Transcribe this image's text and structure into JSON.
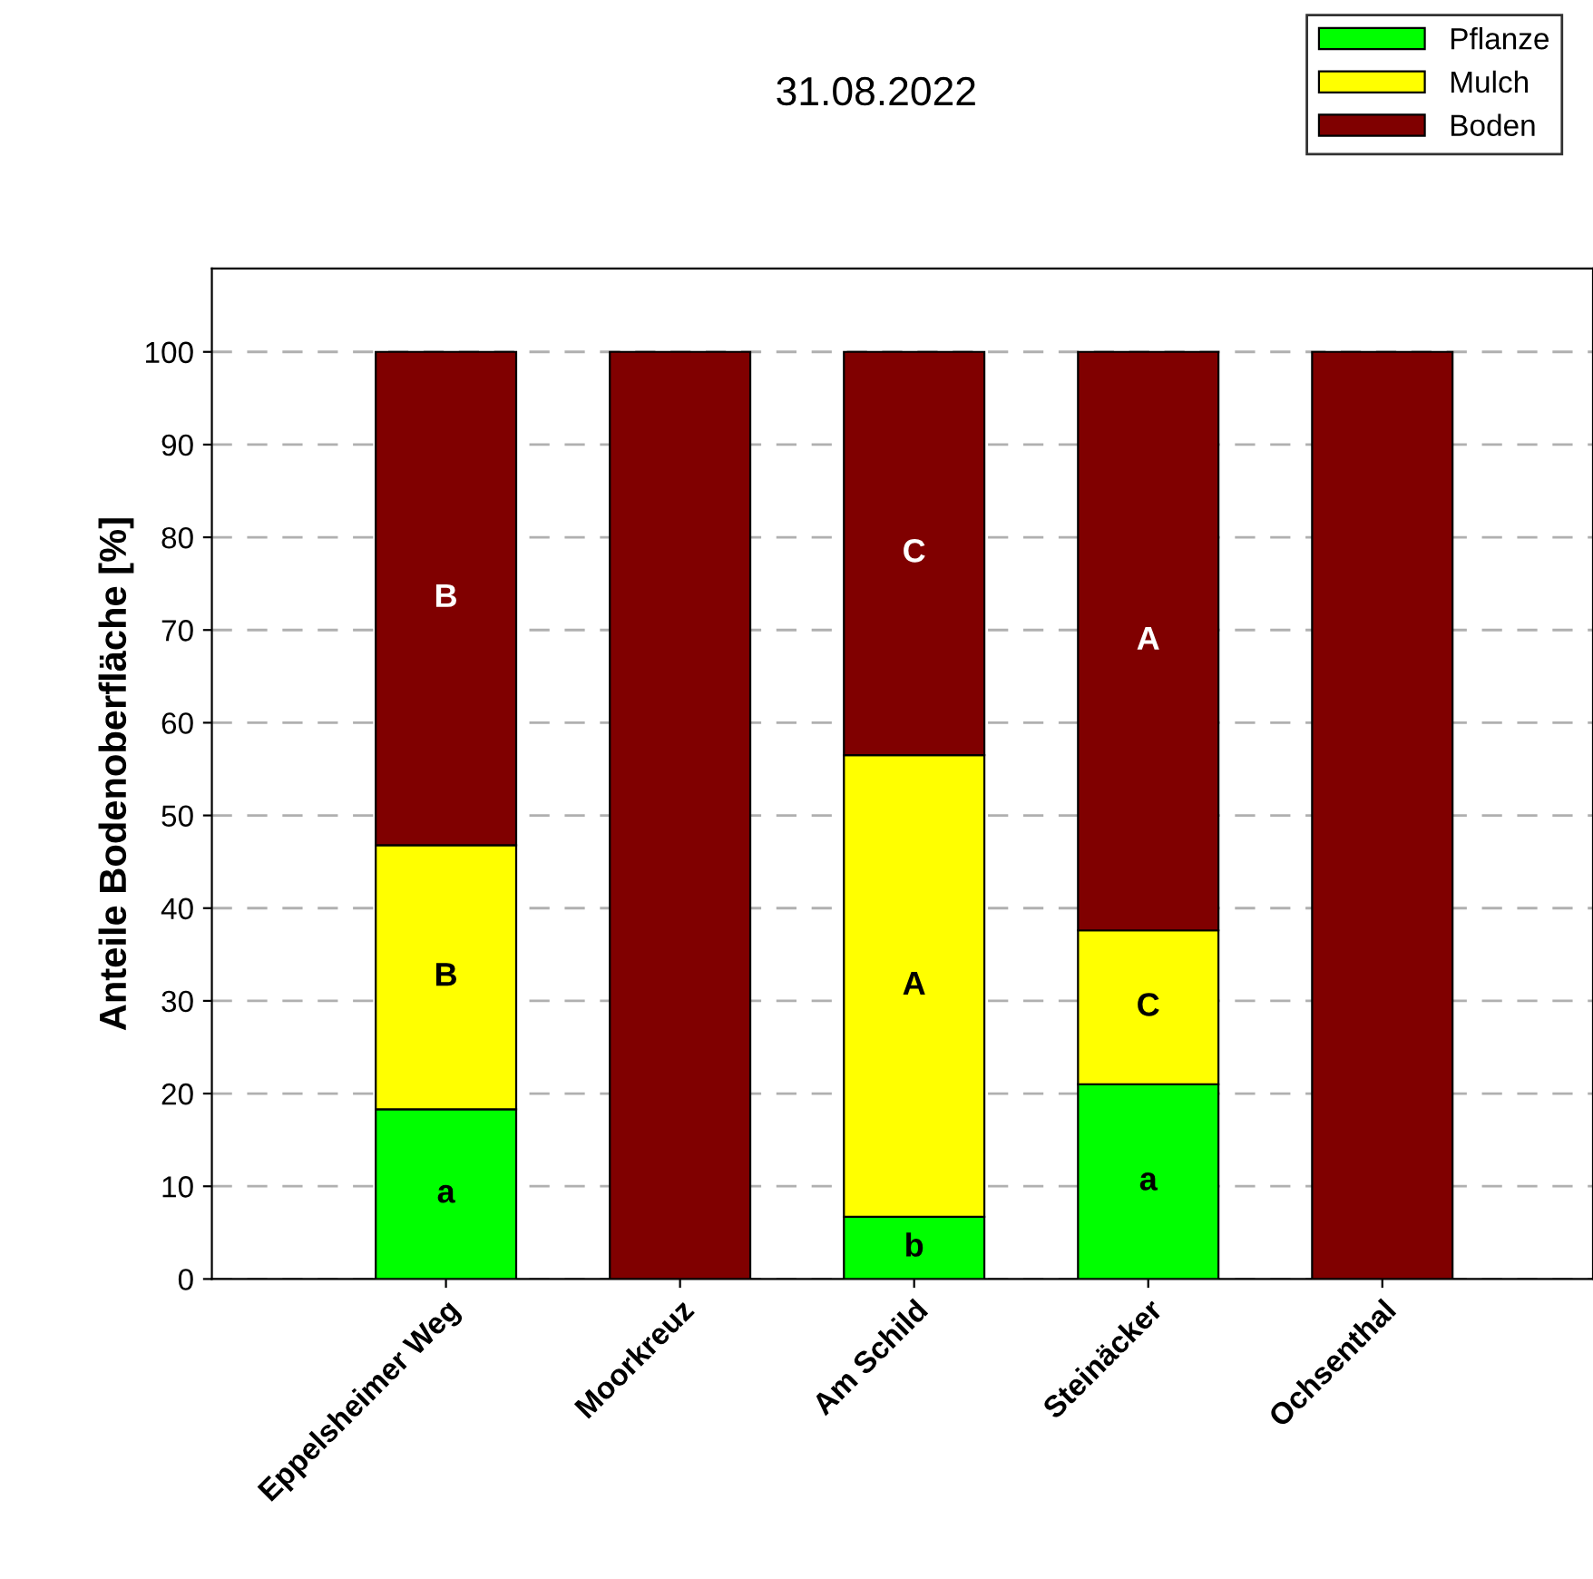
{
  "chart_data": {
    "type": "bar",
    "stacked": true,
    "title": "31.08.2022",
    "ylabel": "Anteile Bodenoberfläche [%]",
    "categories": [
      "Eppelsheimer Weg",
      "Moorkreuz",
      "Am Schild",
      "Steinäcker",
      "Ochsenthal"
    ],
    "series": [
      {
        "name": "Pflanze",
        "color": "#00ff00",
        "values": [
          18.3,
          0,
          6.7,
          21,
          0
        ],
        "value_labels": [
          "a",
          null,
          "b",
          "a",
          null
        ]
      },
      {
        "name": "Mulch",
        "color": "#ffff00",
        "values": [
          28.5,
          0,
          49.8,
          16.6,
          0
        ],
        "value_labels": [
          "B",
          null,
          "A",
          "C",
          null
        ]
      },
      {
        "name": "Boden",
        "color": "#800000",
        "values": [
          53.2,
          100,
          43.5,
          62.4,
          100
        ],
        "value_labels": [
          "B",
          null,
          "C",
          "A",
          null
        ]
      }
    ],
    "ylim": [
      0,
      109
    ],
    "yticks": [
      0,
      10,
      20,
      30,
      40,
      50,
      60,
      70,
      80,
      90,
      100
    ],
    "grid": "y",
    "legend": "top right"
  }
}
